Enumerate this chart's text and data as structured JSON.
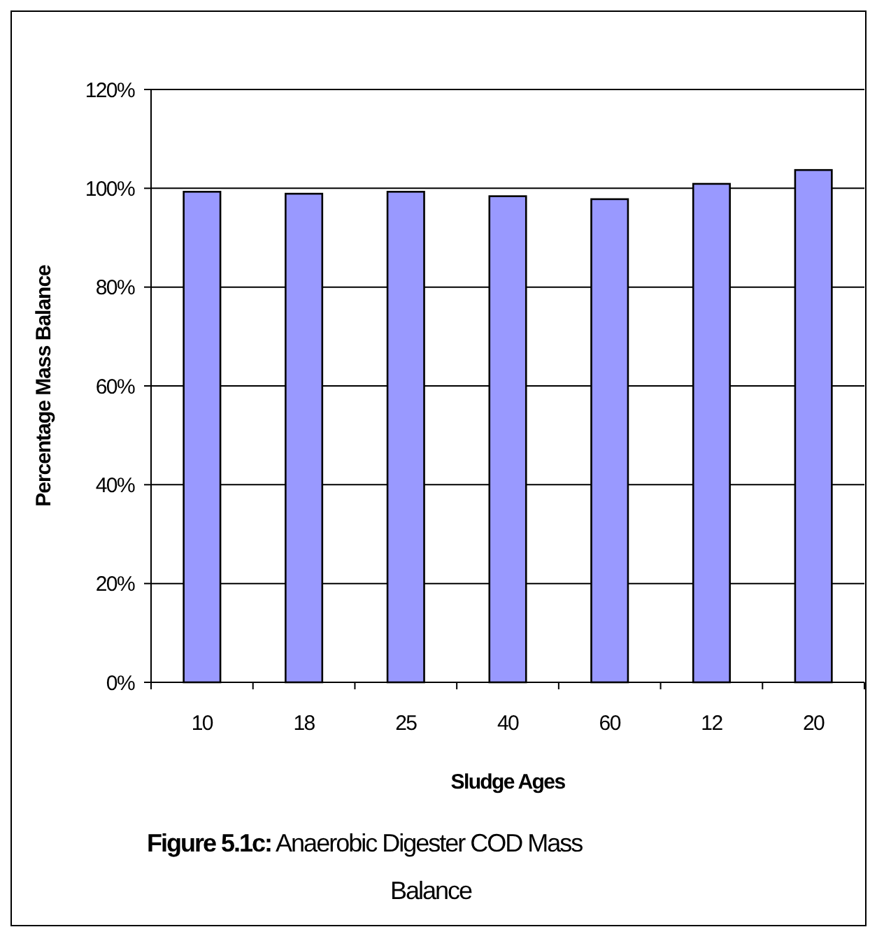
{
  "chart_data": {
    "type": "bar",
    "title": "Figure 5.1c: Anaerobic Digester COD Mass Balance",
    "xlabel": "Sludge Ages",
    "ylabel": "Percentage Mass Balance",
    "categories": [
      "10",
      "18",
      "25",
      "40",
      "60",
      "12",
      "20"
    ],
    "values": [
      99.3,
      98.9,
      99.3,
      98.4,
      97.8,
      100.9,
      103.7
    ],
    "color": "#9999ff",
    "ylim": [
      0,
      120
    ],
    "yticks": [
      {
        "value": 0,
        "label": "0%"
      },
      {
        "value": 20,
        "label": "20%"
      },
      {
        "value": 40,
        "label": "40%"
      },
      {
        "value": 60,
        "label": "60%"
      },
      {
        "value": 80,
        "label": "80%"
      },
      {
        "value": 100,
        "label": "100%"
      },
      {
        "value": 120,
        "label": "120%"
      }
    ],
    "grid": "y"
  }
}
